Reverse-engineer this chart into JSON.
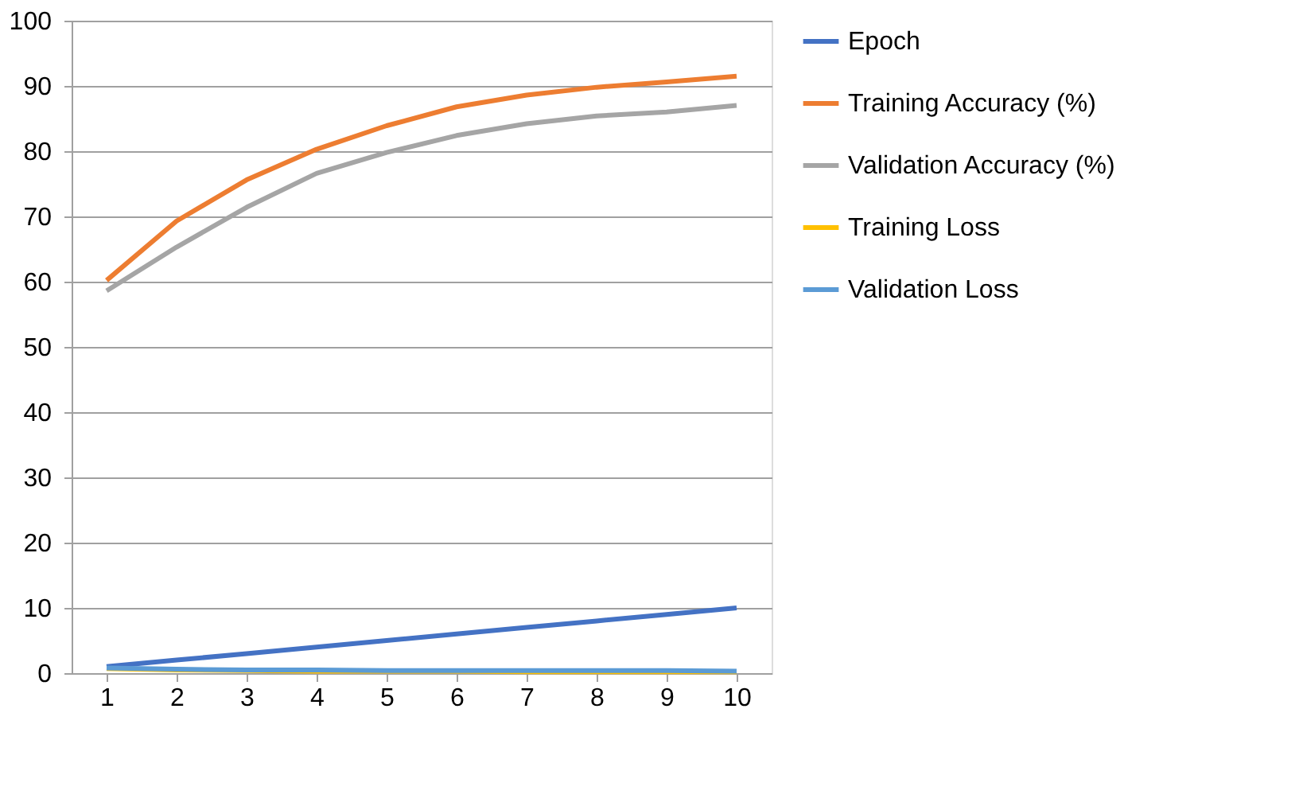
{
  "chart_data": {
    "type": "line",
    "categories": [
      "1",
      "2",
      "3",
      "4",
      "5",
      "6",
      "7",
      "8",
      "9",
      "10"
    ],
    "series": [
      {
        "name": "Epoch",
        "color": "#4472c4",
        "values": [
          1,
          2,
          3,
          4,
          5,
          6,
          7,
          8,
          9,
          10
        ]
      },
      {
        "name": "Training Accuracy (%)",
        "color": "#ed7d31",
        "values": [
          60.2,
          69.3,
          75.6,
          80.3,
          83.9,
          86.8,
          88.6,
          89.8,
          90.6,
          91.5
        ]
      },
      {
        "name": "Validation Accuracy (%)",
        "color": "#a5a5a5",
        "values": [
          58.6,
          65.3,
          71.4,
          76.6,
          79.8,
          82.4,
          84.2,
          85.4,
          86.0,
          87.0
        ]
      },
      {
        "name": "Training Loss",
        "color": "#ffc000",
        "values": [
          0.7,
          0.5,
          0.4,
          0.3,
          0.3,
          0.3,
          0.2,
          0.2,
          0.2,
          0.2
        ]
      },
      {
        "name": "Validation Loss",
        "color": "#5b9bd5",
        "values": [
          0.8,
          0.6,
          0.5,
          0.5,
          0.4,
          0.4,
          0.4,
          0.4,
          0.4,
          0.3
        ]
      }
    ],
    "ylim": [
      0,
      100
    ],
    "yticks": [
      0,
      10,
      20,
      30,
      40,
      50,
      60,
      70,
      80,
      90,
      100
    ],
    "grid": "y",
    "legend": "right",
    "marker": "none",
    "line_style": "solid"
  }
}
